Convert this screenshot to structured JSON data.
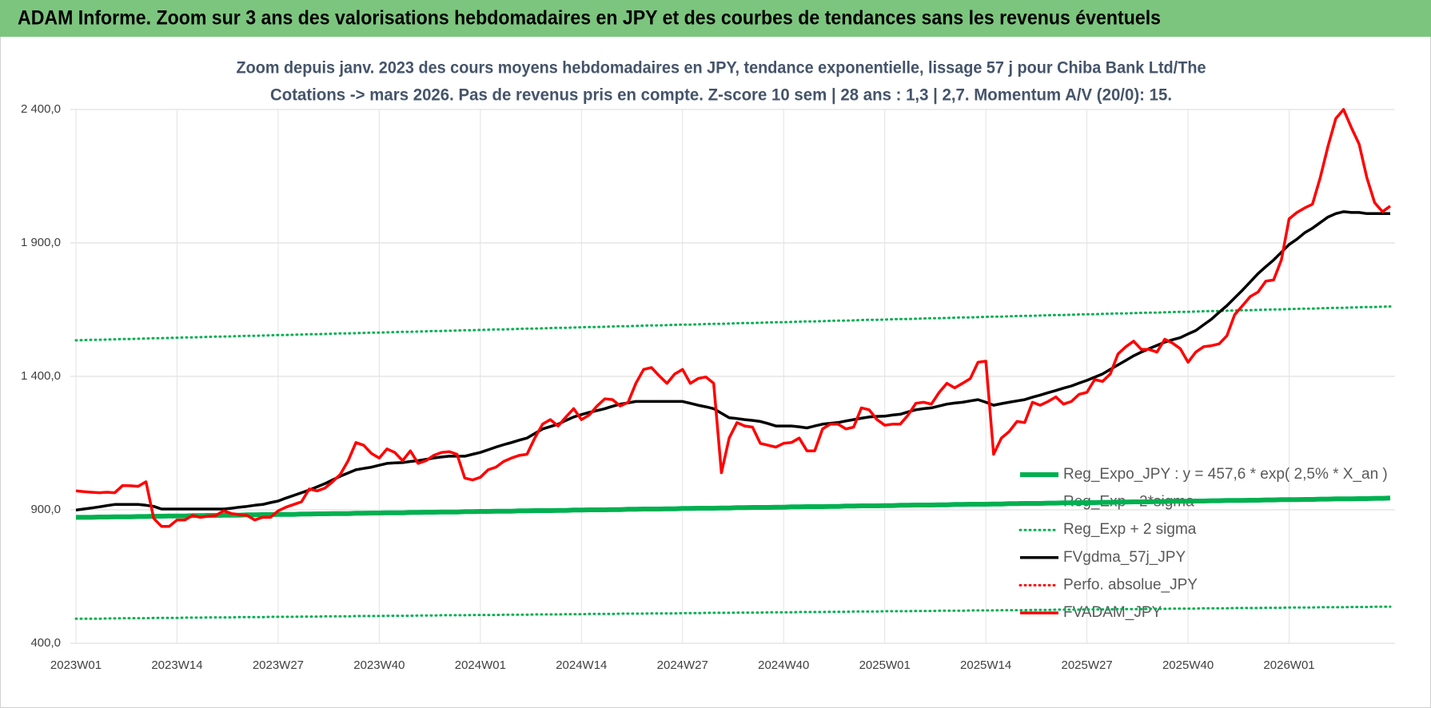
{
  "header": {
    "title": "ADAM Informe. Zoom sur 3 ans des valorisations hebdomadaires en JPY et des courbes de tendances sans les revenus éventuels"
  },
  "chart_data": {
    "type": "line",
    "title": [
      "Zoom depuis janv. 2023 des cours moyens hebdomadaires en JPY, tendance exponentielle, lissage 57 j pour Chiba Bank Ltd/The",
      "Cotations -> mars 2026. Pas de revenus pris en compte. Z-score 10 sem | 28 ans : 1,3 | 2,7. Momentum A/V (20/0): 15."
    ],
    "categories": [
      "2023W01",
      null,
      null,
      null,
      null,
      null,
      null,
      null,
      null,
      null,
      null,
      null,
      null,
      "2023W14",
      null,
      null,
      null,
      null,
      null,
      null,
      null,
      null,
      null,
      null,
      null,
      null,
      "2023W27",
      null,
      null,
      null,
      null,
      null,
      null,
      null,
      null,
      null,
      null,
      null,
      null,
      "2023W40",
      null,
      null,
      null,
      null,
      null,
      null,
      null,
      null,
      null,
      null,
      null,
      null,
      "2024W01",
      null,
      null,
      null,
      null,
      null,
      null,
      null,
      null,
      null,
      null,
      null,
      null,
      "2024W14",
      null,
      null,
      null,
      null,
      null,
      null,
      null,
      null,
      null,
      null,
      null,
      null,
      "2024W27",
      null,
      null,
      null,
      null,
      null,
      null,
      null,
      null,
      null,
      null,
      null,
      null,
      "2024W40",
      null,
      null,
      null,
      null,
      null,
      null,
      null,
      null,
      null,
      null,
      null,
      null,
      "2025W01",
      null,
      null,
      null,
      null,
      null,
      null,
      null,
      null,
      null,
      null,
      null,
      null,
      "2025W14",
      null,
      null,
      null,
      null,
      null,
      null,
      null,
      null,
      null,
      null,
      null,
      null,
      "2025W27",
      null,
      null,
      null,
      null,
      null,
      null,
      null,
      null,
      null,
      null,
      null,
      null,
      "2025W40",
      null,
      null,
      null,
      null,
      null,
      null,
      null,
      null,
      null,
      null,
      null,
      null,
      "2026W01",
      null,
      null,
      null,
      null,
      null,
      null,
      null,
      null,
      null,
      null,
      null,
      null,
      null
    ],
    "ylim": [
      400,
      2400
    ],
    "yticks": [
      {
        "value": 400,
        "label": "400,0"
      },
      {
        "value": 900,
        "label": "900,0"
      },
      {
        "value": 1400,
        "label": "1 400,0"
      },
      {
        "value": 1900,
        "label": "1 900,0"
      },
      {
        "value": 2400,
        "label": "2 400,0"
      }
    ],
    "grid": true,
    "legend": "lower right",
    "series": [
      {
        "name": "Reg_Expo_JPY : y = 457,6 * exp( 2,5% *  X_an )",
        "color": "#00b050",
        "line_style": "bold",
        "values": [
          872,
          872,
          872,
          873,
          873,
          874,
          874,
          874,
          875,
          875,
          876,
          876,
          877,
          877,
          877,
          878,
          878,
          879,
          879,
          880,
          880,
          880,
          881,
          881,
          882,
          882,
          883,
          883,
          883,
          884,
          884,
          885,
          885,
          886,
          886,
          886,
          887,
          887,
          888,
          888,
          889,
          889,
          889,
          890,
          890,
          891,
          891,
          892,
          892,
          892,
          893,
          893,
          894,
          894,
          895,
          895,
          895,
          896,
          896,
          897,
          897,
          897,
          898,
          898,
          899,
          899,
          900,
          900,
          900,
          901,
          901,
          902,
          902,
          903,
          903,
          903,
          904,
          904,
          905,
          905,
          906,
          906,
          906,
          907,
          907,
          908,
          908,
          909,
          909,
          909,
          910,
          910,
          911,
          911,
          912,
          912,
          912,
          913,
          913,
          914,
          914,
          915,
          915,
          915,
          916,
          916,
          917,
          917,
          918,
          918,
          918,
          919,
          919,
          920,
          920,
          921,
          921,
          921,
          922,
          922,
          923,
          923,
          924,
          924,
          924,
          925,
          925,
          926,
          926,
          927,
          927,
          927,
          928,
          928,
          929,
          929,
          930,
          930,
          930,
          931,
          931,
          932,
          932,
          932,
          933,
          933,
          934,
          934,
          935,
          935,
          935,
          936,
          936,
          937,
          937,
          938,
          938,
          938,
          939,
          939,
          940,
          940,
          941,
          941,
          941,
          942,
          942,
          943,
          943,
          944
        ]
      },
      {
        "name": "Reg_Exp - 2*sigma",
        "color": "#00b050",
        "line_style": "dotted",
        "values": [
          492,
          492,
          492,
          492,
          493,
          493,
          494,
          494,
          494,
          494,
          495,
          495,
          495,
          495,
          496,
          496,
          496,
          497,
          497,
          497,
          497,
          498,
          498,
          498,
          498,
          499,
          499,
          499,
          499,
          500,
          500,
          500,
          501,
          501,
          501,
          501,
          502,
          502,
          502,
          502,
          503,
          503,
          503,
          503,
          504,
          504,
          504,
          505,
          505,
          505,
          505,
          506,
          506,
          506,
          506,
          507,
          507,
          507,
          507,
          508,
          508,
          508,
          508,
          509,
          509,
          509,
          510,
          510,
          510,
          510,
          511,
          511,
          511,
          511,
          512,
          512,
          512,
          512,
          513,
          513,
          513,
          514,
          514,
          514,
          514,
          515,
          515,
          515,
          515,
          516,
          516,
          516,
          516,
          517,
          517,
          517,
          517,
          518,
          518,
          518,
          519,
          519,
          519,
          519,
          520,
          520,
          520,
          520,
          521,
          521,
          521,
          522,
          522,
          522,
          522,
          523,
          523,
          523,
          523,
          524,
          524,
          524,
          524,
          525,
          525,
          525,
          526,
          526,
          526,
          526,
          527,
          527,
          527,
          527,
          528,
          528,
          528,
          528,
          529,
          529,
          529,
          530,
          530,
          530,
          530,
          531,
          531,
          531,
          531,
          532,
          532,
          532,
          532,
          533,
          533,
          533,
          534,
          534,
          534,
          534,
          535,
          535,
          535,
          535,
          536,
          536,
          536,
          537,
          537,
          537
        ]
      },
      {
        "name": "Reg_Exp + 2 sigma",
        "color": "#00b050",
        "line_style": "dotted",
        "values": [
          1535,
          1536,
          1537,
          1537,
          1538,
          1539,
          1540,
          1540,
          1541,
          1542,
          1543,
          1543,
          1544,
          1545,
          1546,
          1546,
          1547,
          1548,
          1549,
          1549,
          1550,
          1551,
          1552,
          1552,
          1553,
          1554,
          1555,
          1555,
          1556,
          1557,
          1558,
          1558,
          1559,
          1560,
          1561,
          1561,
          1562,
          1563,
          1564,
          1564,
          1565,
          1566,
          1567,
          1567,
          1568,
          1569,
          1570,
          1570,
          1571,
          1572,
          1573,
          1573,
          1574,
          1575,
          1576,
          1576,
          1577,
          1578,
          1579,
          1579,
          1580,
          1581,
          1582,
          1582,
          1583,
          1584,
          1585,
          1585,
          1586,
          1587,
          1588,
          1588,
          1589,
          1590,
          1591,
          1591,
          1592,
          1593,
          1594,
          1594,
          1595,
          1596,
          1597,
          1597,
          1598,
          1599,
          1600,
          1600,
          1601,
          1602,
          1603,
          1603,
          1604,
          1605,
          1606,
          1606,
          1607,
          1608,
          1609,
          1609,
          1610,
          1611,
          1612,
          1612,
          1613,
          1614,
          1615,
          1615,
          1616,
          1617,
          1618,
          1618,
          1619,
          1620,
          1621,
          1621,
          1622,
          1623,
          1624,
          1624,
          1625,
          1626,
          1627,
          1627,
          1628,
          1629,
          1630,
          1630,
          1631,
          1632,
          1633,
          1633,
          1634,
          1635,
          1636,
          1636,
          1637,
          1638,
          1639,
          1639,
          1640,
          1641,
          1642,
          1642,
          1643,
          1644,
          1645,
          1645,
          1646,
          1647,
          1648,
          1648,
          1649,
          1650,
          1651,
          1651,
          1652,
          1653,
          1654,
          1654,
          1655,
          1656,
          1657,
          1657,
          1658,
          1659,
          1660,
          1660,
          1661,
          1662
        ]
      },
      {
        "name": "FVgdma_57j_JPY",
        "color": "#000000",
        "line_style": "solid",
        "values": [
          899,
          903,
          907,
          911,
          916,
          920,
          920,
          920,
          920,
          917,
          913,
          903,
          903,
          903,
          903,
          903,
          903,
          903,
          903,
          903,
          906,
          910,
          913,
          917,
          920,
          927,
          933,
          944,
          954,
          964,
          974,
          986,
          998,
          1012,
          1026,
          1038,
          1050,
          1055,
          1060,
          1067,
          1074,
          1076,
          1077,
          1081,
          1084,
          1089,
          1094,
          1098,
          1101,
          1101,
          1101,
          1108,
          1115,
          1125,
          1135,
          1144,
          1152,
          1161,
          1169,
          1186,
          1203,
          1212,
          1221,
          1235,
          1248,
          1257,
          1265,
          1272,
          1279,
          1288,
          1296,
          1301,
          1306,
          1306,
          1306,
          1306,
          1306,
          1306,
          1306,
          1299,
          1292,
          1286,
          1279,
          1262,
          1245,
          1242,
          1238,
          1235,
          1231,
          1223,
          1214,
          1214,
          1214,
          1211,
          1207,
          1214,
          1221,
          1224,
          1227,
          1233,
          1238,
          1243,
          1248,
          1250,
          1251,
          1255,
          1258,
          1267,
          1275,
          1279,
          1282,
          1289,
          1296,
          1300,
          1303,
          1308,
          1313,
          1303,
          1292,
          1298,
          1303,
          1308,
          1313,
          1322,
          1330,
          1339,
          1347,
          1356,
          1364,
          1375,
          1385,
          1397,
          1409,
          1426,
          1443,
          1460,
          1477,
          1491,
          1504,
          1516,
          1528,
          1537,
          1545,
          1559,
          1572,
          1593,
          1614,
          1640,
          1665,
          1694,
          1723,
          1754,
          1785,
          1811,
          1836,
          1865,
          1894,
          1914,
          1938,
          1955,
          1976,
          1997,
          2010,
          2017,
          2014,
          2014,
          2010,
          2010,
          2010,
          2010
        ]
      },
      {
        "name": "Perfo. absolue_JPY",
        "color": "#ff0000",
        "line_style": "dotted",
        "values": [
          null,
          null,
          null,
          null,
          null,
          null,
          null,
          null,
          null,
          null,
          null,
          null,
          null,
          null,
          null,
          null,
          null,
          null,
          null,
          null,
          null,
          null,
          null,
          null,
          null,
          null,
          null,
          null,
          null,
          null,
          null,
          null,
          null,
          null,
          null,
          null,
          null,
          null,
          null,
          null,
          null,
          null,
          null,
          null,
          null,
          null,
          null,
          null,
          null,
          null,
          null,
          null,
          null,
          null,
          null,
          null,
          null,
          null,
          null,
          null,
          null,
          null,
          null,
          null,
          null,
          null,
          null,
          null,
          null,
          null,
          null,
          null,
          null,
          null,
          null,
          null,
          null,
          null,
          null,
          null,
          null,
          null,
          null,
          null,
          null,
          null,
          null,
          null,
          null,
          null,
          null,
          null,
          null,
          null,
          null,
          null,
          null,
          null,
          null,
          null,
          null,
          null,
          null,
          null,
          null,
          null,
          null,
          null,
          null,
          null,
          null,
          null,
          null,
          null,
          null,
          null,
          null,
          null,
          null,
          null,
          null,
          null,
          null,
          null,
          null,
          null,
          null,
          null,
          null,
          null,
          null,
          null,
          null,
          null,
          null,
          null,
          null,
          null,
          null,
          null,
          null,
          null,
          null,
          null,
          null,
          null,
          null,
          null,
          null,
          null,
          null,
          null,
          null,
          null,
          null,
          null,
          null,
          null,
          null,
          null,
          null,
          null,
          null,
          null,
          null,
          null,
          null,
          null,
          null,
          null
        ]
      },
      {
        "name": "FVADAM_JPY",
        "color": "#ff0000",
        "line_style": "solid",
        "values": [
          971,
          968,
          966,
          964,
          966,
          964,
          991,
          990,
          988,
          1005,
          868,
          838,
          838,
          862,
          862,
          879,
          872,
          876,
          879,
          896,
          886,
          882,
          879,
          862,
          872,
          872,
          896,
          910,
          920,
          930,
          978,
          971,
          981,
          1005,
          1033,
          1084,
          1152,
          1142,
          1111,
          1094,
          1128,
          1115,
          1084,
          1121,
          1074,
          1084,
          1104,
          1115,
          1118,
          1108,
          1019,
          1012,
          1022,
          1050,
          1060,
          1081,
          1094,
          1104,
          1108,
          1169,
          1221,
          1238,
          1214,
          1248,
          1279,
          1238,
          1255,
          1289,
          1316,
          1313,
          1289,
          1303,
          1374,
          1426,
          1433,
          1402,
          1374,
          1409,
          1426,
          1374,
          1392,
          1398,
          1374,
          1039,
          1169,
          1227,
          1214,
          1210,
          1149,
          1142,
          1135,
          1149,
          1152,
          1169,
          1121,
          1121,
          1203,
          1221,
          1221,
          1203,
          1210,
          1282,
          1275,
          1238,
          1217,
          1221,
          1221,
          1255,
          1299,
          1303,
          1296,
          1340,
          1374,
          1357,
          1374,
          1392,
          1453,
          1457,
          1108,
          1169,
          1193,
          1231,
          1227,
          1303,
          1292,
          1306,
          1323,
          1296,
          1306,
          1333,
          1340,
          1388,
          1381,
          1409,
          1484,
          1511,
          1532,
          1501,
          1501,
          1491,
          1539,
          1525,
          1504,
          1453,
          1491,
          1511,
          1515,
          1522,
          1552,
          1631,
          1665,
          1699,
          1716,
          1757,
          1761,
          1836,
          1990,
          2014,
          2031,
          2045,
          2144,
          2263,
          2366,
          2400,
          2332,
          2270,
          2144,
          2051,
          2017,
          2038
        ]
      }
    ]
  }
}
